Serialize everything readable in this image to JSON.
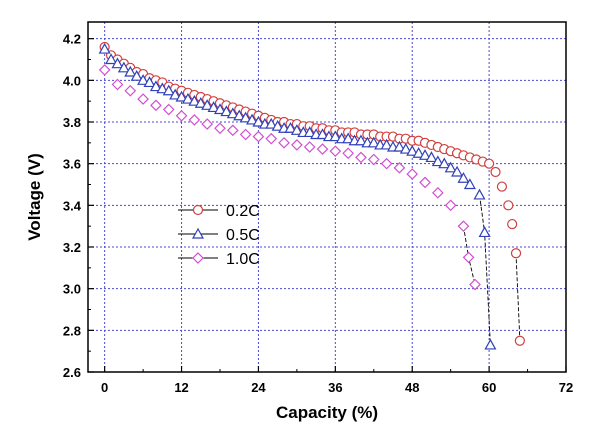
{
  "chart_data": {
    "type": "scatter",
    "xlabel": "Capacity (%)",
    "ylabel": "Voltage (V)",
    "xlim": [
      -2.6,
      72
    ],
    "ylim": [
      2.6,
      4.28
    ],
    "x_ticks": [
      0,
      12,
      24,
      36,
      48,
      60,
      72
    ],
    "y_ticks": [
      2.6,
      2.8,
      3.0,
      3.2,
      3.4,
      3.6,
      3.8,
      4.0,
      4.2
    ],
    "x_tick_labels": [
      "0",
      "12",
      "24",
      "36",
      "48",
      "60",
      "72"
    ],
    "y_tick_labels": [
      "2.6",
      "2.8",
      "3.0",
      "3.2",
      "3.4",
      "3.6",
      "3.8",
      "4.0",
      "4.2"
    ],
    "grid": true,
    "legend_position": "center-left",
    "series": [
      {
        "name": "0.2C",
        "marker": "circle",
        "color": "#d04040",
        "x": [
          0,
          1,
          2,
          3,
          4,
          5,
          6,
          7,
          8,
          9,
          10,
          11,
          12,
          13,
          14,
          15,
          16,
          17,
          18,
          19,
          20,
          21,
          22,
          23,
          24,
          25,
          26,
          27,
          28,
          29,
          30,
          31,
          32,
          33,
          34,
          35,
          36,
          37,
          38,
          39,
          40,
          41,
          42,
          43,
          44,
          45,
          46,
          47,
          48,
          49,
          50,
          51,
          52,
          53,
          54,
          55,
          56,
          57,
          58,
          59,
          60,
          61,
          62,
          63,
          63.6,
          64.2
        ],
        "y": [
          4.16,
          4.12,
          4.1,
          4.08,
          4.06,
          4.04,
          4.03,
          4.01,
          4.0,
          3.99,
          3.97,
          3.96,
          3.95,
          3.94,
          3.93,
          3.92,
          3.91,
          3.9,
          3.89,
          3.88,
          3.87,
          3.86,
          3.85,
          3.84,
          3.83,
          3.82,
          3.81,
          3.8,
          3.8,
          3.79,
          3.79,
          3.78,
          3.78,
          3.77,
          3.77,
          3.76,
          3.76,
          3.75,
          3.75,
          3.75,
          3.74,
          3.74,
          3.74,
          3.73,
          3.73,
          3.73,
          3.72,
          3.72,
          3.71,
          3.71,
          3.7,
          3.69,
          3.68,
          3.67,
          3.66,
          3.65,
          3.64,
          3.63,
          3.62,
          3.61,
          3.6,
          3.56,
          3.49,
          3.4,
          3.31,
          3.17
        ],
        "tail_x": [
          64.8
        ],
        "tail_y": [
          2.75
        ]
      },
      {
        "name": "0.5C",
        "marker": "triangle",
        "color": "#3040b8",
        "x": [
          0,
          1,
          2,
          3,
          4,
          5,
          6,
          7,
          8,
          9,
          10,
          11,
          12,
          13,
          14,
          15,
          16,
          17,
          18,
          19,
          20,
          21,
          22,
          23,
          24,
          25,
          26,
          27,
          28,
          29,
          30,
          31,
          32,
          33,
          34,
          35,
          36,
          37,
          38,
          39,
          40,
          41,
          42,
          43,
          44,
          45,
          46,
          47,
          48,
          49,
          50,
          51,
          52,
          53,
          54,
          55,
          56,
          57,
          58.5
        ],
        "y": [
          4.15,
          4.1,
          4.08,
          4.06,
          4.04,
          4.02,
          4.0,
          3.99,
          3.97,
          3.96,
          3.95,
          3.93,
          3.92,
          3.91,
          3.9,
          3.89,
          3.88,
          3.87,
          3.86,
          3.85,
          3.84,
          3.83,
          3.82,
          3.81,
          3.8,
          3.79,
          3.79,
          3.78,
          3.77,
          3.77,
          3.76,
          3.75,
          3.75,
          3.74,
          3.74,
          3.73,
          3.73,
          3.72,
          3.72,
          3.71,
          3.71,
          3.7,
          3.7,
          3.69,
          3.69,
          3.68,
          3.68,
          3.67,
          3.66,
          3.65,
          3.64,
          3.63,
          3.61,
          3.6,
          3.58,
          3.56,
          3.53,
          3.5,
          3.45
        ],
        "tail_x": [
          59.3,
          60.2
        ],
        "tail_y": [
          3.27,
          2.73
        ]
      },
      {
        "name": "1.0C",
        "marker": "diamond",
        "color": "#d050d0",
        "x": [
          0,
          2,
          4,
          6,
          8,
          10,
          12,
          14,
          16,
          18,
          20,
          22,
          24,
          26,
          28,
          30,
          32,
          34,
          36,
          38,
          40,
          42,
          44,
          46,
          48,
          50,
          52,
          54,
          56
        ],
        "y": [
          4.05,
          3.98,
          3.95,
          3.91,
          3.88,
          3.86,
          3.83,
          3.81,
          3.79,
          3.77,
          3.76,
          3.74,
          3.73,
          3.72,
          3.7,
          3.69,
          3.68,
          3.67,
          3.66,
          3.65,
          3.63,
          3.62,
          3.6,
          3.58,
          3.55,
          3.51,
          3.46,
          3.4,
          3.3
        ],
        "tail_x": [
          56.8,
          57.8
        ],
        "tail_y": [
          3.15,
          3.02
        ]
      }
    ]
  }
}
